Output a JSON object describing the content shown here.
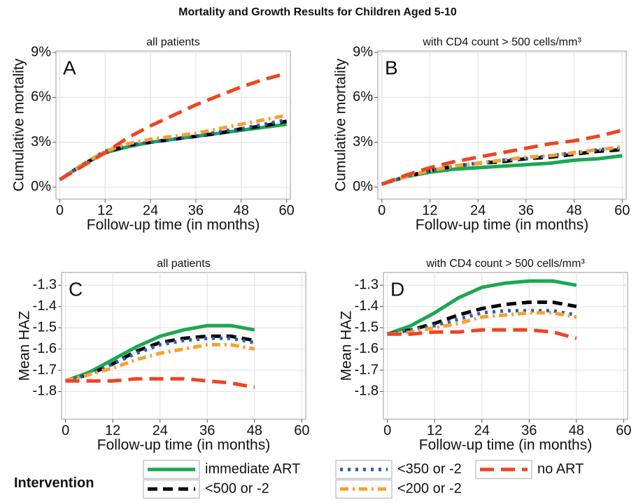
{
  "title": "Mortality and Growth Results for Children Aged 5-10",
  "legend_title": "Intervention",
  "chart_data": [
    {
      "type": "line",
      "title": "all patients",
      "panel_label": "A",
      "xlabel": "Follow-up time (in months)",
      "ylabel": "Cumulative mortality",
      "x": [
        0,
        6,
        12,
        18,
        24,
        30,
        36,
        42,
        48,
        54,
        60
      ],
      "xlim": [
        -1,
        61
      ],
      "ylim": [
        -0.8,
        9.1
      ],
      "xticks": [
        0,
        12,
        24,
        36,
        48,
        60
      ],
      "yticks": [
        {
          "value": 0,
          "label": "0%"
        },
        {
          "value": 3,
          "label": "3%"
        },
        {
          "value": 6,
          "label": "6%"
        },
        {
          "value": 9,
          "label": "9%"
        }
      ],
      "grid": true,
      "series": [
        {
          "name": "immediate ART",
          "color": "#1aa84f",
          "dash": "solid",
          "values": [
            0.5,
            1.5,
            2.3,
            2.7,
            3.0,
            3.2,
            3.4,
            3.6,
            3.8,
            4.0,
            4.2
          ]
        },
        {
          "name": "<500 or -2",
          "color": "#000000",
          "dash": "dashed",
          "values": [
            0.5,
            1.5,
            2.3,
            2.8,
            3.0,
            3.2,
            3.4,
            3.6,
            3.9,
            4.1,
            4.4
          ]
        },
        {
          "name": "<350 or -2",
          "color": "#2a5db0",
          "dash": "dotted",
          "values": [
            0.5,
            1.5,
            2.4,
            2.8,
            3.0,
            3.2,
            3.4,
            3.7,
            3.9,
            4.2,
            4.5
          ]
        },
        {
          "name": "<200 or -2",
          "color": "#f5a030",
          "dash": "dotdash",
          "values": [
            0.5,
            1.5,
            2.4,
            2.9,
            3.2,
            3.4,
            3.6,
            3.9,
            4.2,
            4.5,
            4.8
          ]
        },
        {
          "name": "no ART",
          "color": "#ee4423",
          "dash": "longdash",
          "values": [
            0.5,
            1.4,
            2.3,
            3.3,
            4.1,
            4.8,
            5.5,
            6.1,
            6.7,
            7.2,
            7.6
          ]
        }
      ]
    },
    {
      "type": "line",
      "title": "with CD4 count > 500 cells/mm³",
      "panel_label": "B",
      "xlabel": "Follow-up time (in months)",
      "ylabel": "Cumulative mortality",
      "x": [
        0,
        6,
        12,
        18,
        24,
        30,
        36,
        42,
        48,
        54,
        60
      ],
      "xlim": [
        -1,
        61
      ],
      "ylim": [
        -0.8,
        9.1
      ],
      "xticks": [
        0,
        12,
        24,
        36,
        48,
        60
      ],
      "yticks": [
        {
          "value": 0,
          "label": "0%"
        },
        {
          "value": 3,
          "label": "3%"
        },
        {
          "value": 6,
          "label": "6%"
        },
        {
          "value": 9,
          "label": "9%"
        }
      ],
      "grid": true,
      "series": [
        {
          "name": "immediate ART",
          "color": "#1aa84f",
          "dash": "solid",
          "values": [
            0.2,
            0.7,
            1.0,
            1.2,
            1.3,
            1.4,
            1.5,
            1.6,
            1.8,
            1.9,
            2.1
          ]
        },
        {
          "name": "<500 or -2",
          "color": "#000000",
          "dash": "dashed",
          "values": [
            0.2,
            0.7,
            1.1,
            1.4,
            1.6,
            1.7,
            1.9,
            2.0,
            2.2,
            2.4,
            2.5
          ]
        },
        {
          "name": "<350 or -2",
          "color": "#2a5db0",
          "dash": "dotted",
          "values": [
            0.2,
            0.7,
            1.1,
            1.4,
            1.6,
            1.8,
            1.9,
            2.1,
            2.3,
            2.5,
            2.6
          ]
        },
        {
          "name": "<200 or -2",
          "color": "#f5a030",
          "dash": "dotdash",
          "values": [
            0.2,
            0.7,
            1.1,
            1.4,
            1.6,
            1.8,
            2.0,
            2.1,
            2.3,
            2.5,
            2.7
          ]
        },
        {
          "name": "no ART",
          "color": "#ee4423",
          "dash": "longdash",
          "values": [
            0.2,
            0.8,
            1.3,
            1.7,
            2.0,
            2.3,
            2.6,
            2.9,
            3.1,
            3.4,
            3.8
          ]
        }
      ]
    },
    {
      "type": "line",
      "title": "all patients",
      "panel_label": "C",
      "xlabel": "Follow-up time (in months)",
      "ylabel": "Mean HAZ",
      "x": [
        0,
        6,
        12,
        18,
        24,
        30,
        36,
        42,
        48
      ],
      "xlim": [
        -1,
        61
      ],
      "ylim": [
        -1.93,
        -1.24
      ],
      "xticks": [
        0,
        12,
        24,
        36,
        48,
        60
      ],
      "yticks": [
        -1.8,
        -1.7,
        -1.6,
        -1.5,
        -1.4,
        -1.3
      ],
      "grid": true,
      "series": [
        {
          "name": "immediate ART",
          "color": "#1aa84f",
          "dash": "solid",
          "values": [
            -1.75,
            -1.71,
            -1.65,
            -1.59,
            -1.54,
            -1.51,
            -1.49,
            -1.49,
            -1.51
          ]
        },
        {
          "name": "<500 or -2",
          "color": "#000000",
          "dash": "dashed",
          "values": [
            -1.75,
            -1.72,
            -1.67,
            -1.61,
            -1.57,
            -1.55,
            -1.54,
            -1.54,
            -1.56
          ]
        },
        {
          "name": "<350 or -2",
          "color": "#2a5db0",
          "dash": "dotted",
          "values": [
            -1.75,
            -1.72,
            -1.67,
            -1.62,
            -1.58,
            -1.56,
            -1.55,
            -1.55,
            -1.57
          ]
        },
        {
          "name": "<200 or -2",
          "color": "#f5a030",
          "dash": "dotdash",
          "values": [
            -1.75,
            -1.72,
            -1.69,
            -1.65,
            -1.62,
            -1.6,
            -1.58,
            -1.58,
            -1.6
          ]
        },
        {
          "name": "no ART",
          "color": "#ee4423",
          "dash": "longdash",
          "values": [
            -1.75,
            -1.75,
            -1.75,
            -1.74,
            -1.74,
            -1.74,
            -1.75,
            -1.76,
            -1.78
          ]
        }
      ]
    },
    {
      "type": "line",
      "title": "with CD4 count > 500 cells/mm³",
      "panel_label": "D",
      "xlabel": "Follow-up time (in months)",
      "ylabel": "Mean HAZ",
      "x": [
        0,
        6,
        12,
        18,
        24,
        30,
        36,
        42,
        48
      ],
      "xlim": [
        -1,
        61
      ],
      "ylim": [
        -1.93,
        -1.24
      ],
      "xticks": [
        0,
        12,
        24,
        36,
        48,
        60
      ],
      "yticks": [
        -1.8,
        -1.7,
        -1.6,
        -1.5,
        -1.4,
        -1.3
      ],
      "grid": true,
      "series": [
        {
          "name": "immediate ART",
          "color": "#1aa84f",
          "dash": "solid",
          "values": [
            -1.53,
            -1.49,
            -1.43,
            -1.36,
            -1.31,
            -1.29,
            -1.28,
            -1.28,
            -1.3
          ]
        },
        {
          "name": "<500 or -2",
          "color": "#000000",
          "dash": "dashed",
          "values": [
            -1.53,
            -1.51,
            -1.48,
            -1.44,
            -1.41,
            -1.39,
            -1.38,
            -1.38,
            -1.4
          ]
        },
        {
          "name": "<350 or -2",
          "color": "#2a5db0",
          "dash": "dotted",
          "values": [
            -1.53,
            -1.51,
            -1.49,
            -1.46,
            -1.43,
            -1.42,
            -1.42,
            -1.42,
            -1.44
          ]
        },
        {
          "name": "<200 or -2",
          "color": "#f5a030",
          "dash": "dotdash",
          "values": [
            -1.53,
            -1.52,
            -1.5,
            -1.48,
            -1.45,
            -1.44,
            -1.43,
            -1.43,
            -1.45
          ]
        },
        {
          "name": "no ART",
          "color": "#ee4423",
          "dash": "longdash",
          "values": [
            -1.53,
            -1.53,
            -1.52,
            -1.52,
            -1.51,
            -1.51,
            -1.51,
            -1.52,
            -1.55
          ]
        }
      ]
    }
  ]
}
